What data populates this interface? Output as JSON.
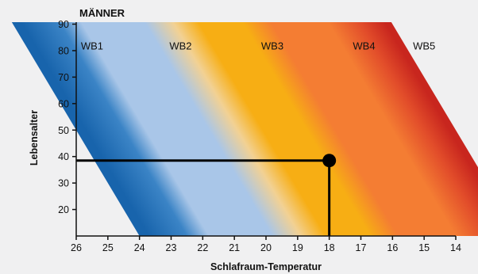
{
  "chart_data": {
    "type": "heatmap",
    "title": "MÄNNER",
    "xlabel": "Schlafraum-Temperatur",
    "ylabel": "Lebensalter",
    "xlim": [
      26,
      14
    ],
    "ylim": [
      10,
      90
    ],
    "x_ticks": [
      26,
      25,
      24,
      23,
      22,
      21,
      20,
      19,
      18,
      17,
      16,
      15,
      14
    ],
    "y_ticks": [
      20,
      30,
      40,
      50,
      60,
      70,
      80,
      90
    ],
    "zones": [
      {
        "label": "WB1",
        "label_x": 25.5,
        "color": "#1f6fb8"
      },
      {
        "label": "WB2",
        "label_x": 22.7,
        "color": "#a9c6e8"
      },
      {
        "label": "WB3",
        "label_x": 19.8,
        "color": "#f7ae14"
      },
      {
        "label": "WB4",
        "label_x": 16.9,
        "color": "#f47d33"
      },
      {
        "label": "WB5",
        "label_x": 15.0,
        "color": "#c8261e"
      }
    ],
    "zone_label_y": 82,
    "gradient_stops": [
      {
        "x": 25.7,
        "color": "#1864ac"
      },
      {
        "x": 24.5,
        "color": "#3b84c6"
      },
      {
        "x": 23.8,
        "color": "#a9c6e8"
      },
      {
        "x": 21.8,
        "color": "#a9c6e8"
      },
      {
        "x": 20.9,
        "color": "#f2d193"
      },
      {
        "x": 20.1,
        "color": "#f7ae14"
      },
      {
        "x": 18.7,
        "color": "#f7ae14"
      },
      {
        "x": 17.8,
        "color": "#f47d33"
      },
      {
        "x": 16.0,
        "color": "#f47d33"
      },
      {
        "x": 15.0,
        "color": "#e24d2a"
      },
      {
        "x": 14.2,
        "color": "#c8261e"
      }
    ],
    "band_shift_per_year": -0.05,
    "marker": {
      "x": 18,
      "y": 38.5
    }
  }
}
